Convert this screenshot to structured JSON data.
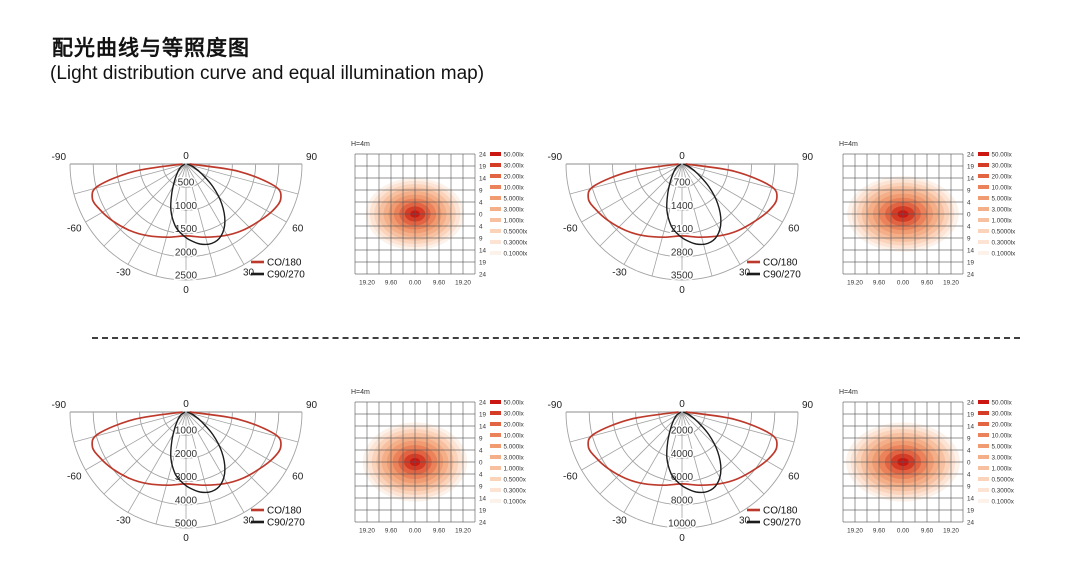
{
  "header": {
    "title_zh": "配光曲线与等照度图",
    "title_en": "(Light distribution curve and equal illumination map)"
  },
  "colors": {
    "curve_red": "#bd392b",
    "curve_black": "#1c1c1c",
    "polar_grid": "#a3a3a3",
    "map_grid": "#565656",
    "text_dark": "#222222",
    "blob_light_to_dark": [
      "#fdf2ea",
      "#fce3d3",
      "#fad3ba",
      "#f7c1a1",
      "#f4af89",
      "#f09b72",
      "#eb825a",
      "#e36442",
      "#d53c26",
      "#cb1612"
    ]
  },
  "chart_data": {
    "type": "photometric-report",
    "note": "Four luminaire units. Each unit = polar light distribution curve (semicircular fan, angles in degrees from nadir, radial grid of 5 rings labeled by radial_ticks in cd) + equal-illuminance contour map at mounting height H=4m. Curve points are [angle_deg, fraction_of_outer_ring]; multiply fraction by outermost radial tick to get cd value.",
    "polar_shared": {
      "angle_ticks": [
        "-90",
        "-60",
        "-30",
        "0",
        "30",
        "60",
        "90"
      ],
      "angle_values": [
        -90,
        -60,
        -30,
        0,
        30,
        60,
        90
      ],
      "origin_label": "0",
      "nadir_label": "0",
      "series": [
        {
          "name": "CO/180",
          "color_key": "curve_red",
          "width": 1.7,
          "points_angle_fraction": [
            [
              -90,
              0.03
            ],
            [
              -82,
              0.45
            ],
            [
              -76,
              0.78
            ],
            [
              -70,
              0.86
            ],
            [
              -62,
              0.84
            ],
            [
              -52,
              0.8
            ],
            [
              -40,
              0.75
            ],
            [
              -28,
              0.7
            ],
            [
              -14,
              0.65
            ],
            [
              0,
              0.62
            ],
            [
              14,
              0.65
            ],
            [
              28,
              0.7
            ],
            [
              40,
              0.75
            ],
            [
              52,
              0.8
            ],
            [
              62,
              0.85
            ],
            [
              70,
              0.87
            ],
            [
              76,
              0.79
            ],
            [
              82,
              0.46
            ],
            [
              90,
              0.03
            ]
          ]
        },
        {
          "name": "C90/270",
          "color_key": "curve_black",
          "width": 1.4,
          "points_angle_fraction": [
            [
              -90,
              0.01
            ],
            [
              -60,
              0.05
            ],
            [
              -48,
              0.09
            ],
            [
              -36,
              0.16
            ],
            [
              -26,
              0.28
            ],
            [
              -18,
              0.42
            ],
            [
              -10,
              0.54
            ],
            [
              -4,
              0.6
            ],
            [
              2,
              0.65
            ],
            [
              10,
              0.7
            ],
            [
              18,
              0.72
            ],
            [
              26,
              0.69
            ],
            [
              34,
              0.6
            ],
            [
              42,
              0.46
            ],
            [
              50,
              0.3
            ],
            [
              58,
              0.16
            ],
            [
              68,
              0.07
            ],
            [
              80,
              0.02
            ],
            [
              90,
              0.01
            ]
          ]
        }
      ]
    },
    "map_shared": {
      "title": "H=4m",
      "x_tick_labels": [
        "19.20",
        "9.60",
        "0.00",
        "9.60",
        "19.20"
      ],
      "y_tick_labels": [
        "24",
        "19",
        "14",
        "9",
        "4",
        "0",
        "4",
        "9",
        "14",
        "19",
        "24"
      ],
      "contour_level_fractions": [
        1.0,
        0.92,
        0.83,
        0.74,
        0.64,
        0.54,
        0.43,
        0.32,
        0.21,
        0.1
      ]
    },
    "units": [
      {
        "name": "unit-1",
        "polar": {
          "radial_ticks": [
            "500",
            "1000",
            "1500",
            "2000",
            "2500"
          ],
          "radial_max": 2500
        },
        "map": {
          "legend_labels": [
            "50.00lx",
            "30.00lx",
            "20.00lx",
            "10.00lx",
            "5.000lx",
            "3.000lx",
            "1.000lx",
            "0.5000lx",
            "0.3000lx",
            "0.1000lx"
          ],
          "blob": {
            "sx": 0.82,
            "sy": 0.6
          }
        }
      },
      {
        "name": "unit-2",
        "polar": {
          "radial_ticks": [
            "700",
            "1400",
            "2100",
            "2800",
            "3500"
          ],
          "radial_max": 3500
        },
        "map": {
          "legend_labels": [
            "50.00lx",
            "30.00lx",
            "20.00lx",
            "10.00lx",
            "5.000lx",
            "3.000lx",
            "1.000lx",
            "0.5000lx",
            "0.3000lx",
            "0.1000lx"
          ],
          "blob": {
            "sx": 0.93,
            "sy": 0.63
          }
        }
      },
      {
        "name": "unit-3",
        "polar": {
          "radial_ticks": [
            "1000",
            "2000",
            "3000",
            "4000",
            "5000"
          ],
          "radial_max": 5000
        },
        "map": {
          "legend_labels": [
            "50.00lx",
            "30.00lx",
            "20.00lx",
            "10.00lx",
            "5.000lx",
            "3.000lx",
            "1.000lx",
            "0.5000x",
            "0.3000x",
            "0.1000x"
          ],
          "blob": {
            "sx": 0.87,
            "sy": 0.66
          }
        }
      },
      {
        "name": "unit-4",
        "polar": {
          "radial_ticks": [
            "2000",
            "4000",
            "6000",
            "8000",
            "10000"
          ],
          "radial_max": 10000
        },
        "map": {
          "legend_labels": [
            "50.00lx",
            "30.00lx",
            "20.00lx",
            "10.00lx",
            "5.000lx",
            "3.000lx",
            "1.000lx",
            "0.5000x",
            "0.3000x",
            "0.1000x"
          ],
          "blob": {
            "sx": 0.95,
            "sy": 0.66
          }
        }
      }
    ]
  }
}
